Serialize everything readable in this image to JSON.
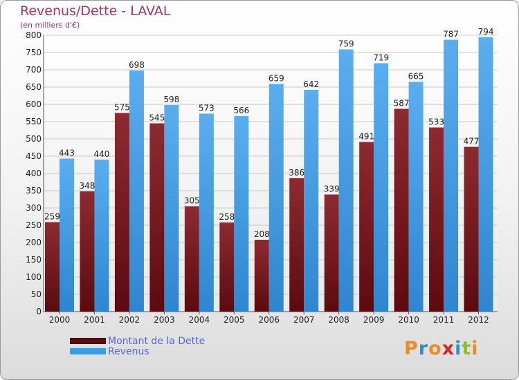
{
  "chart_data": {
    "type": "bar",
    "title": "Revenus/Dette - LAVAL",
    "subtitle": "(en milliers d'€)",
    "categories": [
      "2000",
      "2001",
      "2002",
      "2003",
      "2004",
      "2005",
      "2006",
      "2007",
      "2008",
      "2009",
      "2010",
      "2011",
      "2012"
    ],
    "series": [
      {
        "name": "Montant de la Dette",
        "color": "#7a1a1e",
        "values": [
          259,
          348,
          575,
          545,
          305,
          258,
          208,
          386,
          339,
          491,
          587,
          533,
          477
        ]
      },
      {
        "name": "Revenus",
        "color": "#3d9be4",
        "values": [
          443,
          440,
          698,
          598,
          573,
          566,
          659,
          642,
          759,
          719,
          665,
          787,
          794
        ]
      }
    ],
    "ylim": [
      0,
      800
    ],
    "yticks": [
      0,
      50,
      100,
      150,
      200,
      250,
      300,
      350,
      400,
      450,
      500,
      550,
      600,
      650,
      700,
      750,
      800
    ],
    "grid": true,
    "legend_position": "bottom-left"
  },
  "logo": {
    "letters": [
      "P",
      "r",
      "o",
      "x",
      "i",
      "t",
      "i"
    ],
    "colors": [
      "#f08a1c",
      "#2a8fd8",
      "#f08a1c",
      "#d4252b",
      "#2a8fd8",
      "#8bbf2a",
      "#f08a1c"
    ]
  }
}
